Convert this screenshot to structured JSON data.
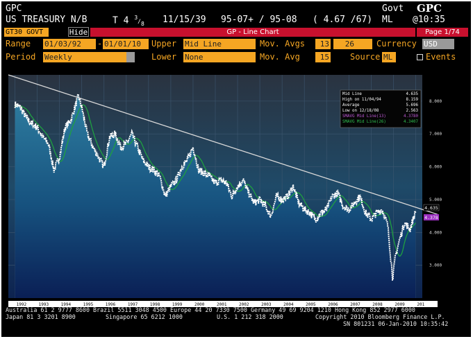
{
  "header": {
    "mnemonic": "GPC",
    "sector": "Govt",
    "function_code": "GPC",
    "security": "US TREASURY N/B",
    "coupon_prefix": "T 4",
    "coupon_fraction_num": "3",
    "coupon_fraction_den": "8",
    "maturity": "11/15/39",
    "bid_ask": "95-07+ / 95-08",
    "yields": "( 4.67 /67)",
    "source": "ML",
    "time": "@10:35"
  },
  "toolbar": {
    "ticker_field": "GT30 GOVT",
    "hide_button": "Hide",
    "chart_title": "GP - Line Chart",
    "page": "Page 1/74"
  },
  "settings": {
    "range_label": "Range",
    "range_start": "01/03/92",
    "range_sep": "-",
    "range_end": "01/01/10",
    "upper_label": "Upper",
    "upper_value": "Mid Line",
    "mov_avgs_label": "Mov. Avgs",
    "mov_avg_1": "13",
    "mov_avg_2": "26",
    "currency_label": "Currency",
    "currency_value": "USD",
    "period_label": "Period",
    "period_value": "Weekly",
    "lower_label": "Lower",
    "lower_value": "None",
    "mov_avg_label": "Mov. Avg",
    "mov_avg_value": "15",
    "source_label": "Source",
    "source_value": "ML",
    "events_label": "Events"
  },
  "legend": {
    "rows": [
      {
        "label": "Mid Line",
        "value": "4.635"
      },
      {
        "label": "High on  11/04/94",
        "value": "8.159"
      },
      {
        "label": "Average",
        "value": "5.696"
      },
      {
        "label": "Low on  12/18/08",
        "value": "2.563"
      },
      {
        "label": "SMAVG Mid Line(13)",
        "value": "4.3780"
      },
      {
        "label": "SMAVG Mid Line(26)",
        "value": "4.3407"
      }
    ]
  },
  "chart_data": {
    "type": "line",
    "ylabel": "",
    "xlabel": "",
    "ylim": [
      2.0,
      8.8
    ],
    "grid": true,
    "legend_position": "top-right",
    "x_ticks": [
      "1992",
      "1993",
      "1994",
      "1995",
      "1996",
      "1997",
      "1998",
      "1999",
      "2000",
      "2001",
      "2002",
      "2003",
      "2004",
      "2005",
      "2006",
      "2007",
      "2008",
      "2009",
      "201"
    ],
    "y_ticks": [
      "8.000",
      "7.000",
      "6.000",
      "5.000",
      "4.000",
      "3.000"
    ],
    "y_tick_values": [
      8,
      7,
      6,
      5,
      4,
      3
    ],
    "last_value_label": "4.635",
    "last_avg_label": "4.378",
    "series": [
      {
        "name": "Mid Line",
        "color": "#ffffff",
        "x": [
          1992.0,
          1992.25,
          1992.5,
          1992.75,
          1993.0,
          1993.25,
          1993.5,
          1993.75,
          1994.0,
          1994.25,
          1994.5,
          1994.85,
          1995.0,
          1995.25,
          1995.5,
          1995.75,
          1996.0,
          1996.25,
          1996.5,
          1996.75,
          1997.0,
          1997.25,
          1997.5,
          1997.75,
          1998.0,
          1998.25,
          1998.5,
          1998.75,
          1999.0,
          1999.25,
          1999.5,
          1999.75,
          2000.0,
          2000.25,
          2000.5,
          2000.75,
          2001.0,
          2001.25,
          2001.5,
          2001.75,
          2002.0,
          2002.25,
          2002.5,
          2002.75,
          2003.0,
          2003.25,
          2003.5,
          2003.75,
          2004.0,
          2004.25,
          2004.5,
          2004.75,
          2005.0,
          2005.25,
          2005.5,
          2005.75,
          2006.0,
          2006.25,
          2006.5,
          2006.75,
          2007.0,
          2007.25,
          2007.5,
          2007.75,
          2008.0,
          2008.25,
          2008.5,
          2008.75,
          2008.97,
          2009.1,
          2009.25,
          2009.5,
          2009.75,
          2010.0
        ],
        "values": [
          7.9,
          7.8,
          7.5,
          7.3,
          7.2,
          6.9,
          6.7,
          5.9,
          6.3,
          7.2,
          7.4,
          8.16,
          7.8,
          7.0,
          6.6,
          6.3,
          6.0,
          6.9,
          7.0,
          6.6,
          6.7,
          7.0,
          6.6,
          6.2,
          6.0,
          5.9,
          5.7,
          5.1,
          5.4,
          5.6,
          6.0,
          6.2,
          6.6,
          5.9,
          5.8,
          5.7,
          5.5,
          5.6,
          5.5,
          5.1,
          5.4,
          5.6,
          5.2,
          4.9,
          5.0,
          4.8,
          4.5,
          5.1,
          5.0,
          5.1,
          5.4,
          4.9,
          4.7,
          4.6,
          4.4,
          4.6,
          4.7,
          5.1,
          5.2,
          4.8,
          4.7,
          4.9,
          5.1,
          4.6,
          4.4,
          4.6,
          4.7,
          4.2,
          2.6,
          3.3,
          3.7,
          4.3,
          4.1,
          4.65
        ]
      }
    ],
    "trendline": {
      "x": [
        1991.7,
        2010.3
      ],
      "values": [
        8.8,
        4.55
      ]
    }
  },
  "footer": {
    "line1": "Australia 61 2 9777 8600 Brazil 5511 3048 4500 Europe 44 20 7330 7500 Germany 49 69 9204 1210 Hong Kong 852 2977 6000",
    "line2a": "Japan 81 3 3201 8900",
    "line2b": "Singapore 65 6212 1000",
    "line2c": "U.S. 1 212 318 2000",
    "line2d": "Copyright 2010 Bloomberg Finance L.P.",
    "line3": "SN 801231 06-Jan-2010 10:35:42"
  }
}
